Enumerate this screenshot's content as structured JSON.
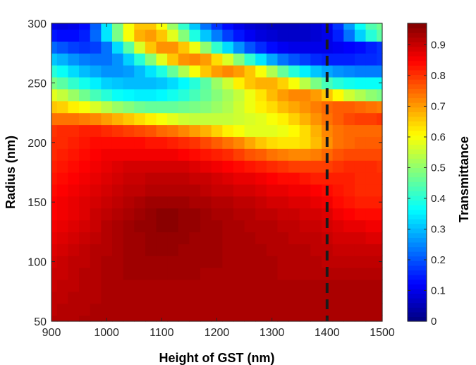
{
  "chart_data": {
    "type": "heatmap",
    "title": "",
    "xlabel": "Height of GST (nm)",
    "ylabel": "Radius (nm)",
    "colorbar_label": "Transmittance",
    "colormap": "jet",
    "xlim": [
      900,
      1500
    ],
    "ylim": [
      50,
      300
    ],
    "clim": [
      0,
      0.97
    ],
    "x_ticks": [
      900,
      1000,
      1100,
      1200,
      1300,
      1400,
      1500
    ],
    "y_ticks": [
      50,
      100,
      150,
      200,
      250,
      300
    ],
    "colorbar_ticks": [
      0,
      0.1,
      0.2,
      0.3,
      0.4,
      0.5,
      0.6,
      0.7,
      0.8,
      0.9
    ],
    "x_tick_labels": [
      "900",
      "1000",
      "1100",
      "1200",
      "1300",
      "1400",
      "1500"
    ],
    "y_tick_labels": [
      "50",
      "100",
      "150",
      "200",
      "250",
      "300"
    ],
    "colorbar_tick_labels": [
      "0",
      "0.1",
      "0.2",
      "0.3",
      "0.4",
      "0.5",
      "0.6",
      "0.7",
      "0.8",
      "0.9"
    ],
    "grid": false,
    "x_cells": [
      900,
      920,
      940,
      960,
      980,
      1000,
      1020,
      1040,
      1060,
      1080,
      1100,
      1120,
      1140,
      1160,
      1180,
      1200,
      1220,
      1240,
      1260,
      1280,
      1300,
      1320,
      1340,
      1360,
      1380,
      1400,
      1420,
      1440,
      1460,
      1480,
      1500
    ],
    "y_cells": [
      50,
      60,
      70,
      80,
      90,
      100,
      110,
      120,
      130,
      140,
      150,
      160,
      170,
      180,
      190,
      200,
      210,
      220,
      230,
      240,
      250,
      260,
      270,
      280,
      290,
      300
    ],
    "z": [
      [
        0.92,
        0.92,
        0.92,
        0.93,
        0.93,
        0.93,
        0.93,
        0.93,
        0.93,
        0.93,
        0.93,
        0.93,
        0.93,
        0.93,
        0.93,
        0.93,
        0.93,
        0.93,
        0.93,
        0.93,
        0.93,
        0.93,
        0.93,
        0.93,
        0.93,
        0.93,
        0.93,
        0.93,
        0.93,
        0.93,
        0.93
      ],
      [
        0.91,
        0.92,
        0.92,
        0.92,
        0.93,
        0.93,
        0.93,
        0.93,
        0.93,
        0.93,
        0.93,
        0.93,
        0.93,
        0.93,
        0.93,
        0.93,
        0.93,
        0.93,
        0.93,
        0.93,
        0.93,
        0.93,
        0.93,
        0.93,
        0.93,
        0.93,
        0.93,
        0.93,
        0.93,
        0.93,
        0.93
      ],
      [
        0.91,
        0.91,
        0.92,
        0.92,
        0.92,
        0.93,
        0.93,
        0.93,
        0.93,
        0.93,
        0.93,
        0.93,
        0.93,
        0.93,
        0.93,
        0.93,
        0.93,
        0.93,
        0.93,
        0.93,
        0.93,
        0.93,
        0.93,
        0.93,
        0.93,
        0.93,
        0.93,
        0.93,
        0.93,
        0.93,
        0.93
      ],
      [
        0.9,
        0.91,
        0.91,
        0.92,
        0.92,
        0.93,
        0.93,
        0.93,
        0.93,
        0.93,
        0.93,
        0.93,
        0.93,
        0.93,
        0.93,
        0.93,
        0.93,
        0.93,
        0.93,
        0.93,
        0.93,
        0.93,
        0.93,
        0.93,
        0.93,
        0.93,
        0.93,
        0.93,
        0.93,
        0.93,
        0.93
      ],
      [
        0.9,
        0.9,
        0.91,
        0.92,
        0.92,
        0.93,
        0.93,
        0.94,
        0.94,
        0.94,
        0.94,
        0.94,
        0.94,
        0.94,
        0.93,
        0.93,
        0.93,
        0.93,
        0.93,
        0.93,
        0.93,
        0.92,
        0.92,
        0.92,
        0.92,
        0.92,
        0.92,
        0.92,
        0.92,
        0.92,
        0.92
      ],
      [
        0.89,
        0.9,
        0.91,
        0.91,
        0.92,
        0.93,
        0.93,
        0.94,
        0.94,
        0.94,
        0.94,
        0.94,
        0.94,
        0.94,
        0.94,
        0.94,
        0.93,
        0.93,
        0.93,
        0.93,
        0.93,
        0.92,
        0.92,
        0.92,
        0.92,
        0.91,
        0.91,
        0.91,
        0.91,
        0.91,
        0.91
      ],
      [
        0.88,
        0.89,
        0.9,
        0.91,
        0.92,
        0.92,
        0.93,
        0.94,
        0.94,
        0.95,
        0.95,
        0.95,
        0.94,
        0.94,
        0.94,
        0.94,
        0.93,
        0.93,
        0.93,
        0.93,
        0.92,
        0.92,
        0.92,
        0.92,
        0.91,
        0.91,
        0.9,
        0.9,
        0.9,
        0.9,
        0.9
      ],
      [
        0.87,
        0.88,
        0.89,
        0.9,
        0.91,
        0.92,
        0.93,
        0.94,
        0.94,
        0.95,
        0.95,
        0.95,
        0.95,
        0.94,
        0.94,
        0.94,
        0.93,
        0.93,
        0.93,
        0.92,
        0.92,
        0.92,
        0.91,
        0.91,
        0.91,
        0.9,
        0.89,
        0.89,
        0.89,
        0.88,
        0.88
      ],
      [
        0.86,
        0.87,
        0.88,
        0.89,
        0.9,
        0.92,
        0.93,
        0.94,
        0.95,
        0.95,
        0.96,
        0.96,
        0.95,
        0.95,
        0.94,
        0.94,
        0.93,
        0.93,
        0.92,
        0.92,
        0.92,
        0.91,
        0.91,
        0.9,
        0.9,
        0.89,
        0.88,
        0.87,
        0.87,
        0.86,
        0.86
      ],
      [
        0.85,
        0.86,
        0.87,
        0.88,
        0.9,
        0.91,
        0.92,
        0.93,
        0.94,
        0.95,
        0.96,
        0.96,
        0.95,
        0.95,
        0.94,
        0.93,
        0.93,
        0.92,
        0.92,
        0.91,
        0.91,
        0.9,
        0.9,
        0.89,
        0.89,
        0.88,
        0.86,
        0.85,
        0.84,
        0.84,
        0.84
      ],
      [
        0.85,
        0.86,
        0.87,
        0.88,
        0.89,
        0.9,
        0.91,
        0.92,
        0.93,
        0.94,
        0.94,
        0.94,
        0.94,
        0.93,
        0.93,
        0.92,
        0.92,
        0.91,
        0.91,
        0.9,
        0.89,
        0.89,
        0.88,
        0.88,
        0.87,
        0.86,
        0.84,
        0.83,
        0.82,
        0.82,
        0.82
      ],
      [
        0.84,
        0.85,
        0.86,
        0.87,
        0.88,
        0.89,
        0.9,
        0.91,
        0.91,
        0.92,
        0.92,
        0.92,
        0.92,
        0.92,
        0.91,
        0.9,
        0.9,
        0.89,
        0.89,
        0.88,
        0.87,
        0.87,
        0.86,
        0.86,
        0.85,
        0.84,
        0.83,
        0.82,
        0.81,
        0.81,
        0.81
      ],
      [
        0.83,
        0.84,
        0.85,
        0.86,
        0.87,
        0.88,
        0.89,
        0.9,
        0.9,
        0.91,
        0.91,
        0.91,
        0.91,
        0.9,
        0.9,
        0.89,
        0.88,
        0.87,
        0.87,
        0.86,
        0.85,
        0.84,
        0.84,
        0.83,
        0.82,
        0.82,
        0.82,
        0.82,
        0.81,
        0.81,
        0.81
      ],
      [
        0.82,
        0.83,
        0.84,
        0.85,
        0.86,
        0.87,
        0.88,
        0.89,
        0.89,
        0.89,
        0.89,
        0.89,
        0.89,
        0.88,
        0.87,
        0.86,
        0.85,
        0.84,
        0.83,
        0.82,
        0.81,
        0.8,
        0.79,
        0.79,
        0.79,
        0.79,
        0.8,
        0.81,
        0.81,
        0.81,
        0.8
      ],
      [
        0.81,
        0.82,
        0.83,
        0.84,
        0.85,
        0.86,
        0.86,
        0.86,
        0.86,
        0.86,
        0.86,
        0.86,
        0.85,
        0.84,
        0.83,
        0.82,
        0.81,
        0.79,
        0.77,
        0.76,
        0.74,
        0.73,
        0.72,
        0.72,
        0.73,
        0.75,
        0.77,
        0.78,
        0.78,
        0.78,
        0.78
      ],
      [
        0.81,
        0.81,
        0.82,
        0.83,
        0.84,
        0.84,
        0.84,
        0.84,
        0.84,
        0.83,
        0.83,
        0.82,
        0.81,
        0.8,
        0.78,
        0.76,
        0.74,
        0.72,
        0.69,
        0.66,
        0.64,
        0.63,
        0.63,
        0.64,
        0.67,
        0.71,
        0.74,
        0.75,
        0.76,
        0.76,
        0.76
      ],
      [
        0.8,
        0.81,
        0.81,
        0.82,
        0.82,
        0.81,
        0.8,
        0.79,
        0.78,
        0.77,
        0.75,
        0.74,
        0.72,
        0.7,
        0.68,
        0.65,
        0.62,
        0.6,
        0.58,
        0.58,
        0.58,
        0.59,
        0.61,
        0.64,
        0.68,
        0.72,
        0.74,
        0.75,
        0.75,
        0.75,
        0.75
      ],
      [
        0.74,
        0.74,
        0.74,
        0.73,
        0.72,
        0.7,
        0.68,
        0.66,
        0.64,
        0.62,
        0.6,
        0.58,
        0.56,
        0.55,
        0.55,
        0.55,
        0.55,
        0.56,
        0.57,
        0.58,
        0.6,
        0.62,
        0.65,
        0.68,
        0.71,
        0.74,
        0.76,
        0.78,
        0.79,
        0.79,
        0.8
      ],
      [
        0.66,
        0.65,
        0.62,
        0.6,
        0.57,
        0.54,
        0.51,
        0.49,
        0.47,
        0.46,
        0.46,
        0.46,
        0.47,
        0.48,
        0.49,
        0.51,
        0.53,
        0.56,
        0.59,
        0.62,
        0.64,
        0.67,
        0.69,
        0.71,
        0.73,
        0.75,
        0.76,
        0.76,
        0.75,
        0.74,
        0.73
      ],
      [
        0.58,
        0.55,
        0.51,
        0.47,
        0.43,
        0.4,
        0.37,
        0.36,
        0.35,
        0.35,
        0.36,
        0.38,
        0.4,
        0.43,
        0.46,
        0.49,
        0.52,
        0.55,
        0.59,
        0.63,
        0.67,
        0.7,
        0.72,
        0.72,
        0.7,
        0.66,
        0.61,
        0.56,
        0.53,
        0.5,
        0.48
      ],
      [
        0.48,
        0.45,
        0.41,
        0.38,
        0.35,
        0.32,
        0.31,
        0.3,
        0.3,
        0.3,
        0.31,
        0.33,
        0.36,
        0.4,
        0.45,
        0.51,
        0.56,
        0.62,
        0.66,
        0.68,
        0.68,
        0.65,
        0.6,
        0.54,
        0.48,
        0.43,
        0.4,
        0.38,
        0.37,
        0.37,
        0.37
      ],
      [
        0.4,
        0.37,
        0.33,
        0.3,
        0.28,
        0.26,
        0.26,
        0.27,
        0.3,
        0.34,
        0.39,
        0.46,
        0.53,
        0.6,
        0.66,
        0.7,
        0.72,
        0.7,
        0.66,
        0.6,
        0.53,
        0.46,
        0.4,
        0.35,
        0.31,
        0.28,
        0.26,
        0.25,
        0.24,
        0.24,
        0.24
      ],
      [
        0.31,
        0.29,
        0.26,
        0.24,
        0.23,
        0.23,
        0.26,
        0.32,
        0.4,
        0.49,
        0.58,
        0.66,
        0.71,
        0.72,
        0.7,
        0.64,
        0.57,
        0.49,
        0.41,
        0.34,
        0.28,
        0.23,
        0.2,
        0.18,
        0.16,
        0.15,
        0.15,
        0.15,
        0.16,
        0.16,
        0.17
      ],
      [
        0.22,
        0.2,
        0.18,
        0.17,
        0.18,
        0.23,
        0.33,
        0.45,
        0.57,
        0.66,
        0.71,
        0.71,
        0.66,
        0.59,
        0.5,
        0.41,
        0.33,
        0.26,
        0.2,
        0.16,
        0.13,
        0.11,
        0.1,
        0.1,
        0.1,
        0.1,
        0.11,
        0.12,
        0.13,
        0.15,
        0.17
      ],
      [
        0.14,
        0.13,
        0.13,
        0.15,
        0.22,
        0.34,
        0.48,
        0.6,
        0.68,
        0.7,
        0.66,
        0.58,
        0.49,
        0.39,
        0.31,
        0.24,
        0.18,
        0.14,
        0.11,
        0.09,
        0.08,
        0.07,
        0.07,
        0.07,
        0.08,
        0.1,
        0.15,
        0.23,
        0.32,
        0.4,
        0.45
      ],
      [
        0.1,
        0.09,
        0.1,
        0.13,
        0.21,
        0.34,
        0.48,
        0.6,
        0.66,
        0.66,
        0.6,
        0.51,
        0.41,
        0.31,
        0.23,
        0.17,
        0.13,
        0.1,
        0.08,
        0.07,
        0.06,
        0.06,
        0.06,
        0.07,
        0.08,
        0.11,
        0.17,
        0.27,
        0.37,
        0.44,
        0.47
      ]
    ],
    "annotations": [
      {
        "type": "vertical-dashed-line",
        "x": 1400,
        "color": "#1a1a1a"
      }
    ]
  }
}
